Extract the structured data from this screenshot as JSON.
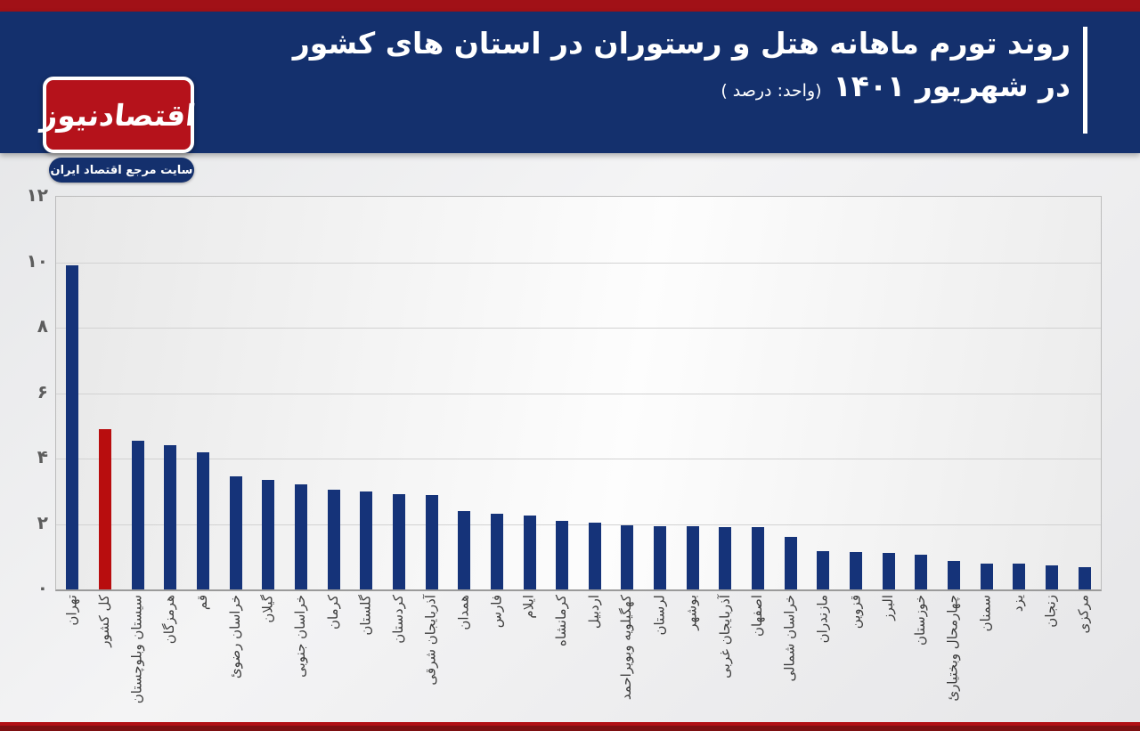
{
  "page": {
    "top_strip_color": "#a11117",
    "bottom_line_color": "#b11015",
    "bottom_strip_color": "#7d1012",
    "background_color": "#e8e9ea"
  },
  "header": {
    "background_color": "#14306d",
    "title_line1": "روند تورم ماهانه هتل و رستوران در استان های کشور",
    "title_line2_main": "در شهریور ۱۴۰۱",
    "title_line2_sub": "(واحد: درصد )"
  },
  "logo": {
    "name": "اقتصادنیوز",
    "tagline": "سایت مرجع اقتصاد ایران",
    "box_color": "#b5121b",
    "tagline_bg": "#14306d"
  },
  "chart_data": {
    "type": "bar",
    "title": "روند تورم ماهانه هتل و رستوران در استان های کشور در شهریور ۱۴۰۱",
    "xlabel": "",
    "ylabel": "درصد",
    "ylim": [
      0,
      12
    ],
    "grid": true,
    "legend": false,
    "bar_color": "#153379",
    "highlight_color": "#b80d0e",
    "highlight_index": 1,
    "y_ticks": [
      {
        "value": 0,
        "label": "۰"
      },
      {
        "value": 2,
        "label": "۲"
      },
      {
        "value": 4,
        "label": "۴"
      },
      {
        "value": 6,
        "label": "۶"
      },
      {
        "value": 8,
        "label": "۸"
      },
      {
        "value": 10,
        "label": "۱۰"
      },
      {
        "value": 12,
        "label": "۱۲"
      }
    ],
    "categories": [
      "تهران",
      "کل کشور",
      "سیستان وبلوچستان",
      "هرمزگان",
      "قم",
      "خراسان رضوئ",
      "گیلان",
      "خراسان جنوبی",
      "کرمان",
      "گلستان",
      "کردستان",
      "آذربایجان شرقی",
      "همدان",
      "فارس",
      "ایلام",
      "کرمانشاه",
      "اردبیل",
      "کهگیلویه وبویراحمد",
      "لرستان",
      "بوشهر",
      "آذربایجان غربی",
      "اصفهان",
      "خراسان شمالی",
      "مازندران",
      "قزوین",
      "البرز",
      "خوزستان",
      "چهارمحال وبختیارئ",
      "سمنان",
      "یزد",
      "زنجان",
      "مرکزی"
    ],
    "values": [
      9.9,
      4.9,
      4.55,
      4.4,
      4.2,
      3.45,
      3.35,
      3.2,
      3.05,
      3.0,
      2.9,
      2.88,
      2.4,
      2.3,
      2.25,
      2.1,
      2.05,
      1.97,
      1.94,
      1.92,
      1.9,
      1.9,
      1.6,
      1.16,
      1.14,
      1.12,
      1.07,
      0.88,
      0.8,
      0.78,
      0.73,
      0.67
    ]
  }
}
